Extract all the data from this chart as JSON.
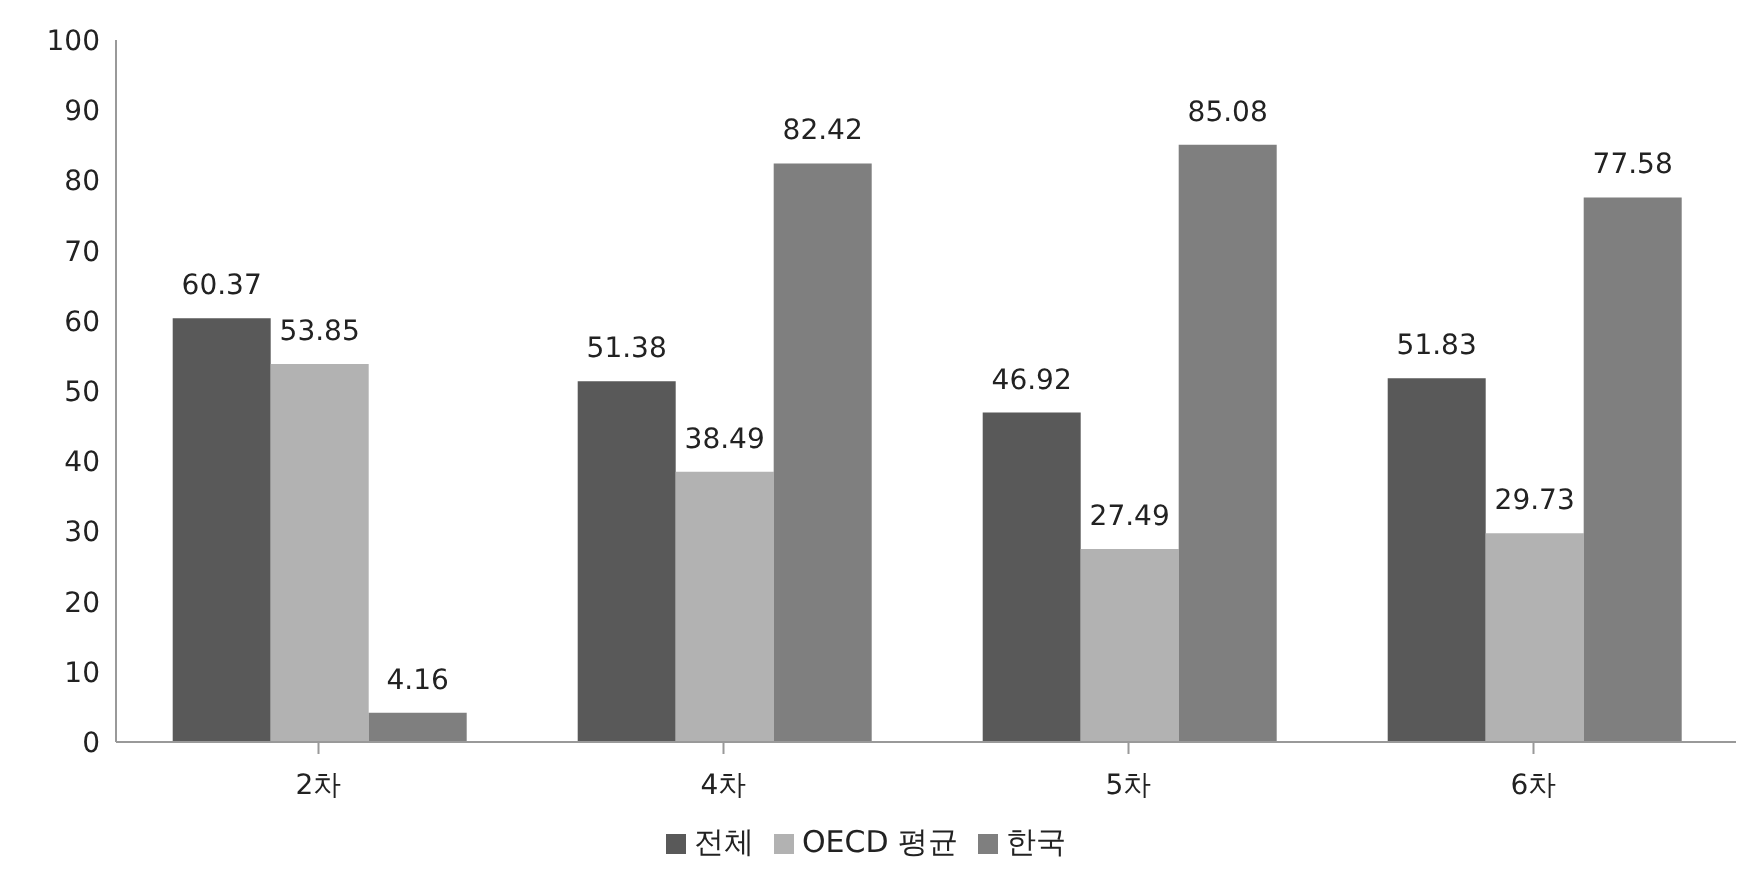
{
  "chart_data": {
    "type": "bar",
    "categories": [
      "2차",
      "4차",
      "5차",
      "6차"
    ],
    "series": [
      {
        "name": "전체",
        "color": "#595959",
        "values": [
          60.37,
          51.38,
          46.92,
          51.83
        ]
      },
      {
        "name": "OECD 평균",
        "color": "#b2b2b2",
        "values": [
          53.85,
          38.49,
          27.49,
          29.73
        ]
      },
      {
        "name": "한국",
        "color": "#7f7f7f",
        "values": [
          4.16,
          82.42,
          85.08,
          77.58
        ]
      }
    ],
    "ylim": [
      0,
      100
    ],
    "yticks": [
      0,
      10,
      20,
      30,
      40,
      50,
      60,
      70,
      80,
      90,
      100
    ],
    "data_labels": true,
    "legend": "bottom",
    "grid": false
  }
}
